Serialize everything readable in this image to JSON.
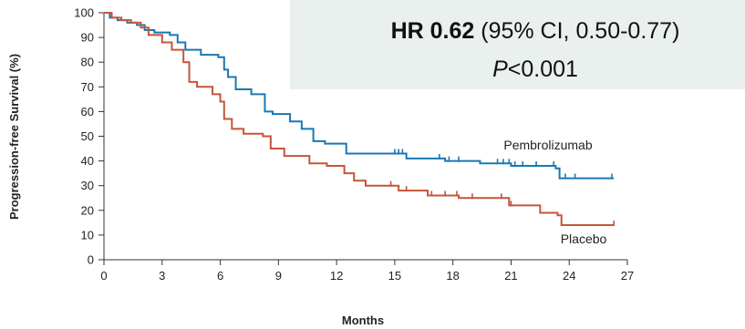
{
  "chart_data": {
    "type": "line",
    "subtype": "kaplan-meier",
    "xlabel": "Months",
    "ylabel": "Progression-free Survival (%)",
    "xlim": [
      0,
      27
    ],
    "ylim": [
      0,
      100
    ],
    "x_ticks": [
      0,
      3,
      6,
      9,
      12,
      15,
      18,
      21,
      24,
      27
    ],
    "y_ticks": [
      0,
      10,
      20,
      30,
      40,
      50,
      60,
      70,
      80,
      90,
      100
    ],
    "grid": false,
    "annotation": {
      "hr_label": "HR 0.62",
      "ci_text": "(95% CI, 0.50-0.77)",
      "p_label": "P",
      "p_value": "<0.001",
      "box_color": "#eaf0ed"
    },
    "series": [
      {
        "name": "Pembrolizumab",
        "color": "#1a78b3",
        "x": [
          0,
          0.3,
          0.7,
          1.2,
          1.7,
          2.1,
          2.6,
          3.4,
          3.8,
          4.2,
          5.0,
          5.9,
          6.2,
          6.4,
          6.8,
          7.6,
          8.3,
          8.7,
          9.6,
          10.2,
          10.8,
          11.4,
          12.5,
          15.6,
          17.6,
          19.4,
          21.0,
          23.3,
          23.5,
          26.3
        ],
        "y": [
          100,
          98,
          97,
          96,
          95,
          93,
          92,
          91,
          88,
          85,
          83,
          82,
          77,
          74,
          69,
          67,
          60,
          59,
          56,
          53,
          48,
          47,
          43,
          41,
          40,
          39,
          38,
          37,
          33,
          33
        ],
        "censor_x": [
          15.0,
          15.2,
          15.4,
          17.3,
          17.8,
          18.3,
          20.3,
          20.6,
          20.9,
          21.2,
          21.6,
          22.3,
          23.2,
          23.8,
          24.3,
          26.2
        ]
      },
      {
        "name": "Placebo",
        "color": "#c5553a",
        "x": [
          0,
          0.4,
          0.9,
          1.4,
          1.9,
          2.3,
          3.0,
          3.5,
          4.1,
          4.4,
          4.8,
          5.6,
          6.0,
          6.2,
          6.6,
          7.2,
          8.2,
          8.6,
          9.3,
          10.6,
          11.5,
          12.4,
          12.9,
          13.5,
          15.2,
          16.7,
          18.3,
          20.9,
          22.5,
          23.4,
          23.6,
          26.3
        ],
        "y": [
          100,
          98,
          97,
          96,
          94,
          91,
          88,
          85,
          80,
          72,
          70,
          67,
          64,
          57,
          53,
          51,
          50,
          45,
          42,
          39,
          38,
          35,
          32,
          30,
          28,
          26,
          25,
          22,
          19,
          18,
          14,
          14
        ],
        "censor_x": [
          14.8,
          15.6,
          16.9,
          17.6,
          18.2,
          19.0,
          20.5,
          21.0,
          26.3
        ]
      }
    ]
  }
}
